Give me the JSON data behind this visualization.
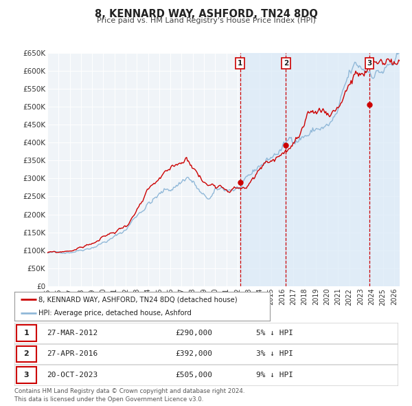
{
  "title": "8, KENNARD WAY, ASHFORD, TN24 8DQ",
  "subtitle": "Price paid vs. HM Land Registry's House Price Index (HPI)",
  "ylim": [
    0,
    650000
  ],
  "xlim_start": 1995.0,
  "xlim_end": 2026.5,
  "yticks": [
    0,
    50000,
    100000,
    150000,
    200000,
    250000,
    300000,
    350000,
    400000,
    450000,
    500000,
    550000,
    600000,
    650000
  ],
  "ytick_labels": [
    "£0",
    "£50K",
    "£100K",
    "£150K",
    "£200K",
    "£250K",
    "£300K",
    "£350K",
    "£400K",
    "£450K",
    "£500K",
    "£550K",
    "£600K",
    "£650K"
  ],
  "xticks": [
    1995,
    1996,
    1997,
    1998,
    1999,
    2000,
    2001,
    2002,
    2003,
    2004,
    2005,
    2006,
    2007,
    2008,
    2009,
    2010,
    2011,
    2012,
    2013,
    2014,
    2015,
    2016,
    2017,
    2018,
    2019,
    2020,
    2021,
    2022,
    2023,
    2024,
    2025,
    2026
  ],
  "price_paid_color": "#cc0000",
  "hpi_color": "#90b8d8",
  "sale_marker_color": "#cc0000",
  "vline_color": "#cc0000",
  "shade_color": "#daeaf7",
  "background_color": "#f0f4f8",
  "grid_color": "#ffffff",
  "legend_label_pp": "8, KENNARD WAY, ASHFORD, TN24 8DQ (detached house)",
  "legend_label_hpi": "HPI: Average price, detached house, Ashford",
  "sales": [
    {
      "num": 1,
      "date": "27-MAR-2012",
      "price": 290000,
      "year": 2012.23,
      "pct": "5%"
    },
    {
      "num": 2,
      "date": "27-APR-2016",
      "price": 392000,
      "year": 2016.33,
      "pct": "3%"
    },
    {
      "num": 3,
      "date": "20-OCT-2023",
      "price": 505000,
      "year": 2023.8,
      "pct": "9%"
    }
  ],
  "footnote1": "Contains HM Land Registry data © Crown copyright and database right 2024.",
  "footnote2": "This data is licensed under the Open Government Licence v3.0."
}
